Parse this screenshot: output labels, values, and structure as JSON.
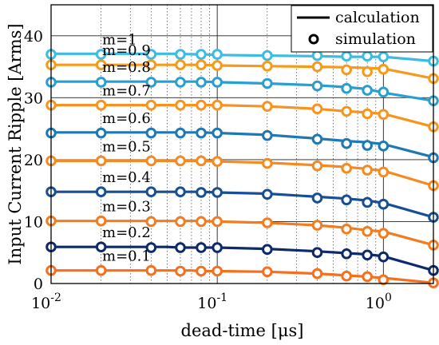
{
  "chart_data": {
    "type": "line",
    "xscale": "log",
    "xlim": [
      0.01,
      2
    ],
    "ylim": [
      0,
      45
    ],
    "xlabel": "dead-time [μs]",
    "ylabel": "Input Current Ripple [Arms]",
    "yticks": [
      0,
      10,
      20,
      30,
      40
    ],
    "xtick_labels": [
      {
        "base": "10",
        "exp": "-2"
      },
      {
        "base": "10",
        "exp": "-1"
      },
      {
        "base": "10",
        "exp": "0"
      }
    ],
    "grid": true,
    "legend_position": "top-right",
    "legend": [
      {
        "label": "calculation",
        "style": "solid-line"
      },
      {
        "label": "simulation",
        "style": "circle-marker"
      }
    ],
    "x": [
      0.01,
      0.02,
      0.03,
      0.04,
      0.05,
      0.06,
      0.07,
      0.08,
      0.1,
      0.2,
      0.4,
      0.6,
      0.8,
      1.0,
      2.0
    ],
    "simulation_x": [
      0.01,
      0.02,
      0.04,
      0.06,
      0.08,
      0.1,
      0.2,
      0.4,
      0.6,
      0.8,
      1.0,
      2.0
    ],
    "series": [
      {
        "name": "m=1",
        "color": "#3bbce0",
        "calc": [
          37.1,
          37.1,
          37.1,
          37.1,
          37.1,
          37.1,
          37.0,
          37.0,
          36.9,
          36.8,
          36.7,
          36.6,
          36.6,
          36.6,
          35.9
        ],
        "sim": [
          37.0,
          37.0,
          37.0,
          37.0,
          37.0,
          37.0,
          36.8,
          36.8,
          36.7,
          36.7,
          36.6,
          35.9
        ]
      },
      {
        "name": "m=0.9",
        "color": "#f59a1b",
        "calc": [
          35.3,
          35.3,
          35.3,
          35.3,
          35.3,
          35.3,
          35.3,
          35.3,
          35.2,
          35.1,
          35.0,
          34.9,
          34.8,
          34.7,
          33.1
        ],
        "sim": [
          35.3,
          35.3,
          35.3,
          35.3,
          35.3,
          35.2,
          35.1,
          35.0,
          34.5,
          34.2,
          34.6,
          33.1
        ]
      },
      {
        "name": "m=0.8",
        "color": "#2a9fcf",
        "calc": [
          32.6,
          32.6,
          32.6,
          32.6,
          32.6,
          32.6,
          32.6,
          32.6,
          32.5,
          32.3,
          32.0,
          31.7,
          31.4,
          30.8,
          29.5
        ],
        "sim": [
          32.5,
          32.5,
          32.5,
          32.5,
          32.5,
          32.5,
          32.3,
          31.9,
          31.5,
          31.2,
          30.9,
          29.5
        ]
      },
      {
        "name": "m=0.7",
        "color": "#f7931e",
        "calc": [
          28.8,
          28.8,
          28.8,
          28.8,
          28.8,
          28.8,
          28.8,
          28.8,
          28.8,
          28.6,
          28.2,
          27.8,
          27.6,
          27.4,
          25.3
        ],
        "sim": [
          28.8,
          28.8,
          28.8,
          28.8,
          28.8,
          28.8,
          28.6,
          28.2,
          27.8,
          27.4,
          27.3,
          25.3
        ]
      },
      {
        "name": "m=0.6",
        "color": "#1f78b4",
        "calc": [
          24.4,
          24.4,
          24.4,
          24.4,
          24.4,
          24.4,
          24.4,
          24.4,
          24.3,
          24.0,
          23.4,
          23.0,
          22.8,
          22.5,
          20.4
        ],
        "sim": [
          24.3,
          24.3,
          24.3,
          24.3,
          24.3,
          24.3,
          23.9,
          23.3,
          22.6,
          22.3,
          22.2,
          20.3
        ]
      },
      {
        "name": "m=0.5",
        "color": "#f6891f",
        "calc": [
          19.8,
          19.8,
          19.8,
          19.8,
          19.8,
          19.8,
          19.8,
          19.8,
          19.7,
          19.5,
          19.1,
          18.8,
          18.5,
          18.2,
          15.8
        ],
        "sim": [
          19.8,
          19.8,
          19.8,
          19.8,
          19.8,
          19.7,
          19.4,
          19.0,
          18.6,
          18.3,
          18.0,
          15.8
        ]
      },
      {
        "name": "m=0.4",
        "color": "#184f94",
        "calc": [
          14.8,
          14.8,
          14.8,
          14.8,
          14.8,
          14.8,
          14.8,
          14.8,
          14.7,
          14.5,
          14.0,
          13.7,
          13.4,
          13.0,
          10.7
        ],
        "sim": [
          14.8,
          14.8,
          14.8,
          14.8,
          14.7,
          14.7,
          14.4,
          13.8,
          13.5,
          13.1,
          12.8,
          10.7
        ]
      },
      {
        "name": "m=0.3",
        "color": "#f47c20",
        "calc": [
          10.1,
          10.1,
          10.1,
          10.1,
          10.1,
          10.1,
          10.1,
          10.1,
          10.0,
          9.8,
          9.4,
          9.0,
          8.6,
          8.4,
          6.2
        ],
        "sim": [
          10.1,
          10.1,
          10.0,
          10.0,
          10.0,
          10.0,
          9.8,
          9.4,
          8.8,
          8.4,
          8.1,
          6.2
        ]
      },
      {
        "name": "m=0.2",
        "color": "#0e2a6b",
        "calc": [
          5.9,
          5.9,
          5.9,
          5.9,
          5.9,
          5.8,
          5.8,
          5.8,
          5.8,
          5.6,
          5.2,
          4.9,
          4.7,
          4.4,
          2.1
        ],
        "sim": [
          5.9,
          5.9,
          5.8,
          5.8,
          5.8,
          5.8,
          5.5,
          5.0,
          4.8,
          4.6,
          4.3,
          2.1
        ]
      },
      {
        "name": "m=0.1",
        "color": "#f4701f",
        "calc": [
          2.1,
          2.1,
          2.1,
          2.1,
          2.1,
          2.1,
          2.1,
          2.0,
          2.0,
          1.9,
          1.6,
          1.3,
          1.1,
          0.9,
          0.1
        ],
        "sim": [
          2.1,
          2.1,
          2.1,
          2.0,
          2.0,
          2.0,
          1.9,
          1.6,
          1.2,
          1.1,
          0.6,
          0.1
        ]
      }
    ]
  }
}
